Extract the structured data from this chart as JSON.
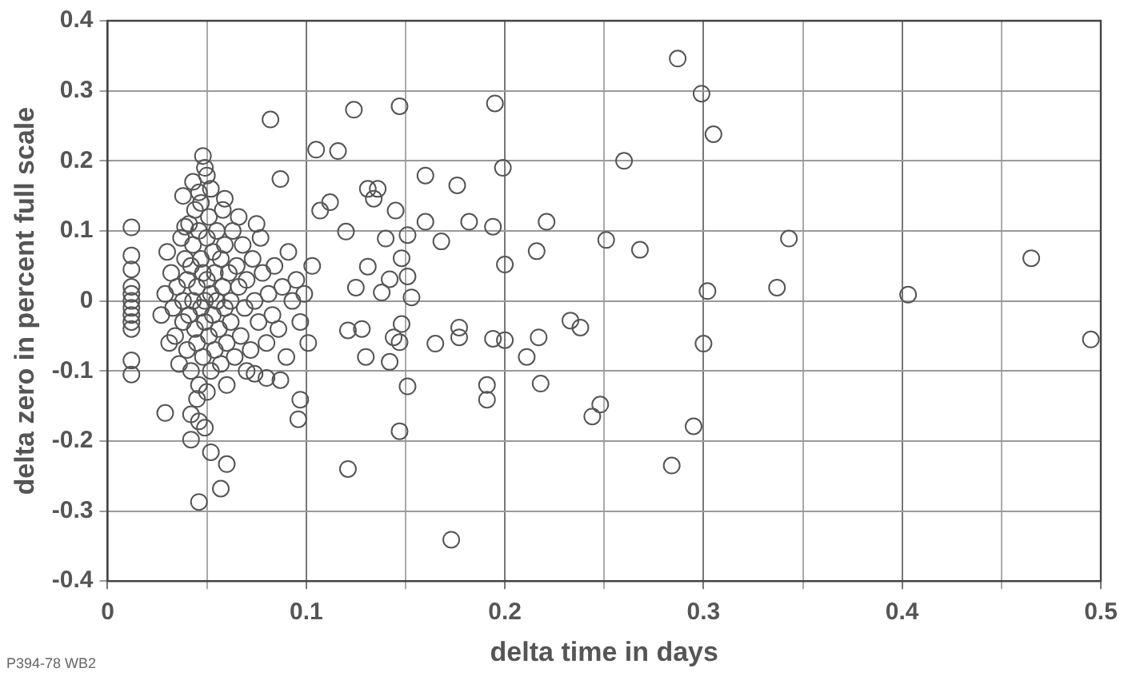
{
  "chart_data": {
    "type": "scatter",
    "xlabel": "delta time in days",
    "ylabel": "delta zero in percent full scale",
    "annotations": [
      "P394-78 WB2"
    ],
    "xlim": [
      0,
      0.5
    ],
    "xticks": [
      0,
      {
        "value": 0.05,
        "label": null
      },
      0.1,
      {
        "value": 0.15,
        "label": null
      },
      0.2,
      {
        "value": 0.25,
        "label": null
      },
      0.3,
      {
        "value": 0.35,
        "label": null
      },
      0.4,
      {
        "value": 0.45,
        "label": null
      },
      0.5
    ],
    "ylim": [
      -0.4,
      0.4
    ],
    "yticks": [
      -0.4,
      -0.3,
      -0.2,
      -0.1,
      0,
      0.1,
      0.2,
      0.3,
      0.4
    ],
    "grid": true,
    "legend": false,
    "marker": "circle",
    "series": [
      {
        "color": "#555555",
        "x": [
          0.012,
          0.012,
          0.012,
          0.012,
          0.012,
          0.012,
          0.012,
          0.012,
          0.012,
          0.012,
          0.012,
          0.012,
          0.048,
          0.049,
          0.046,
          0.039,
          0.05,
          0.059,
          0.082,
          0.087,
          0.105,
          0.116,
          0.124,
          0.147,
          0.107,
          0.112,
          0.12,
          0.131,
          0.136,
          0.134,
          0.145,
          0.14,
          0.151,
          0.148,
          0.151,
          0.153,
          0.131,
          0.142,
          0.125,
          0.138,
          0.16,
          0.16,
          0.168,
          0.176,
          0.182,
          0.195,
          0.199,
          0.2,
          0.194,
          0.216,
          0.221,
          0.251,
          0.26,
          0.268,
          0.165,
          0.177,
          0.177,
          0.194,
          0.2,
          0.128,
          0.121,
          0.148,
          0.144,
          0.147,
          0.13,
          0.142,
          0.151,
          0.147,
          0.121,
          0.173,
          0.217,
          0.211,
          0.191,
          0.191,
          0.218,
          0.248,
          0.244,
          0.233,
          0.238,
          0.287,
          0.299,
          0.305,
          0.302,
          0.3,
          0.295,
          0.284,
          0.337,
          0.343,
          0.403,
          0.465,
          0.495,
          0.046,
          0.057,
          0.06,
          0.052,
          0.029,
          0.042,
          0.049,
          0.042,
          0.046,
          0.096,
          0.097,
          0.074,
          0.087,
          0.03,
          0.032,
          0.033,
          0.034,
          0.035,
          0.036,
          0.037,
          0.038,
          0.038,
          0.039,
          0.04,
          0.04,
          0.041,
          0.041,
          0.042,
          0.042,
          0.043,
          0.043,
          0.044,
          0.044,
          0.045,
          0.045,
          0.046,
          0.046,
          0.047,
          0.047,
          0.048,
          0.048,
          0.049,
          0.049,
          0.05,
          0.05,
          0.051,
          0.051,
          0.052,
          0.052,
          0.053,
          0.053,
          0.054,
          0.054,
          0.055,
          0.055,
          0.056,
          0.057,
          0.057,
          0.058,
          0.059,
          0.059,
          0.06,
          0.061,
          0.062,
          0.062,
          0.063,
          0.064,
          0.065,
          0.066,
          0.067,
          0.068,
          0.069,
          0.07,
          0.072,
          0.073,
          0.074,
          0.076,
          0.077,
          0.078,
          0.08,
          0.081,
          0.083,
          0.084,
          0.086,
          0.088,
          0.09,
          0.091,
          0.093,
          0.095,
          0.097,
          0.099,
          0.101,
          0.103,
          0.038,
          0.043,
          0.047,
          0.052,
          0.058,
          0.066,
          0.075,
          0.027,
          0.029,
          0.031,
          0.045,
          0.05,
          0.06,
          0.07,
          0.08
        ],
        "values": [
          0.105,
          0.065,
          0.045,
          0.02,
          0.01,
          0,
          -0.01,
          -0.02,
          -0.03,
          -0.04,
          -0.085,
          -0.105,
          0.207,
          0.19,
          0.155,
          0.106,
          0.179,
          0.146,
          0.259,
          0.174,
          0.216,
          0.214,
          0.273,
          0.278,
          0.129,
          0.141,
          0.099,
          0.16,
          0.16,
          0.146,
          0.129,
          0.089,
          0.094,
          0.061,
          0.035,
          0.005,
          0.049,
          0.031,
          0.019,
          0.012,
          0.179,
          0.113,
          0.085,
          0.165,
          0.113,
          0.282,
          0.19,
          0.052,
          0.106,
          0.071,
          0.113,
          0.087,
          0.2,
          0.073,
          -0.061,
          -0.038,
          -0.052,
          -0.054,
          -0.056,
          -0.04,
          -0.042,
          -0.033,
          -0.052,
          -0.059,
          -0.08,
          -0.087,
          -0.122,
          -0.186,
          -0.24,
          -0.341,
          -0.052,
          -0.08,
          -0.12,
          -0.141,
          -0.118,
          -0.148,
          -0.165,
          -0.028,
          -0.038,
          0.346,
          0.296,
          0.238,
          0.014,
          -0.061,
          -0.179,
          -0.235,
          0.019,
          0.089,
          0.009,
          0.061,
          -0.055,
          -0.287,
          -0.268,
          -0.233,
          -0.216,
          -0.16,
          -0.162,
          -0.181,
          -0.198,
          -0.172,
          -0.169,
          -0.141,
          -0.104,
          -0.113,
          0.07,
          0.04,
          -0.01,
          -0.05,
          0.02,
          -0.09,
          0.09,
          0.0,
          -0.03,
          0.06,
          -0.07,
          0.03,
          0.11,
          -0.02,
          0.05,
          -0.1,
          0.0,
          0.08,
          -0.04,
          0.13,
          0.02,
          -0.06,
          0.1,
          -0.12,
          -0.01,
          0.06,
          0.04,
          -0.08,
          0.0,
          -0.03,
          0.09,
          0.03,
          -0.05,
          0.12,
          -0.1,
          0.01,
          0.07,
          -0.02,
          -0.07,
          0.04,
          0.0,
          0.1,
          -0.04,
          0.06,
          -0.09,
          0.02,
          -0.01,
          0.08,
          -0.06,
          0.04,
          0.0,
          -0.03,
          0.1,
          -0.08,
          0.05,
          0.02,
          -0.05,
          0.08,
          -0.01,
          0.03,
          -0.07,
          0.06,
          0.0,
          -0.03,
          0.09,
          0.04,
          -0.06,
          0.01,
          -0.02,
          0.05,
          -0.04,
          0.02,
          -0.08,
          0.07,
          0.0,
          0.03,
          -0.03,
          0.01,
          -0.06,
          0.05,
          0.15,
          0.17,
          0.14,
          0.16,
          0.13,
          0.12,
          0.11,
          -0.02,
          0.01,
          -0.06,
          -0.14,
          -0.13,
          -0.12,
          -0.1,
          -0.11
        ]
      }
    ]
  }
}
